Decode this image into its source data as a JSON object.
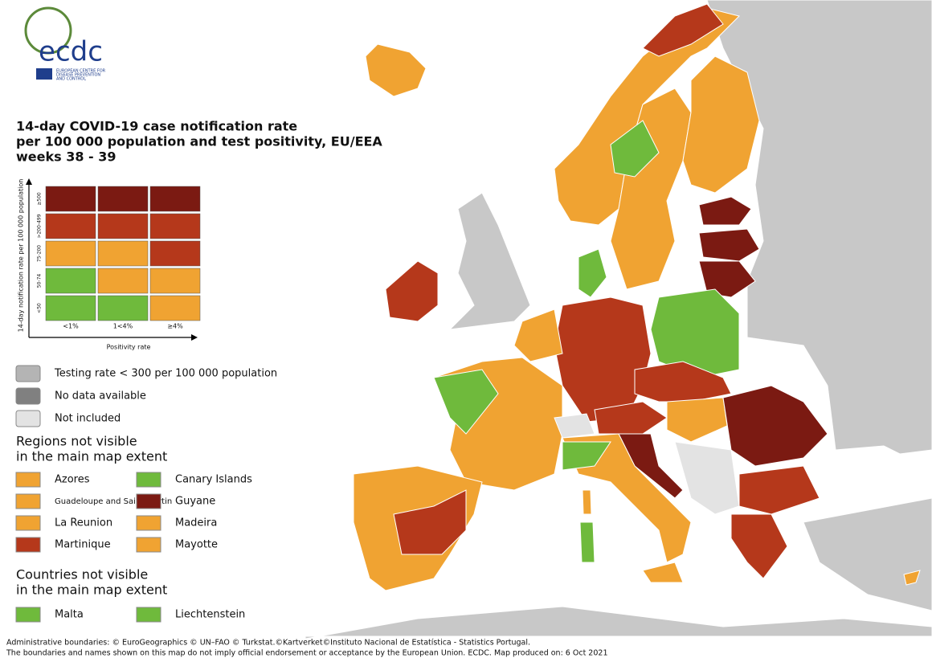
{
  "logo": {
    "name": "ecdc",
    "subtitle": [
      "EUROPEAN CENTRE FOR",
      "DISEASE PREVENTION",
      "AND CONTROL"
    ]
  },
  "title": [
    "14-day COVID-19 case notification rate",
    "per 100 000 population and test positivity, EU/EEA",
    "weeks 38 - 39"
  ],
  "matrix": {
    "y_label": "14-day notification rate per 100 000 population",
    "x_label": "Positivity rate",
    "rows": [
      "≥500",
      ">200-499",
      "75-200",
      "50-74",
      "<50"
    ],
    "columns": [
      "<1%",
      "1<4%",
      "≥4%"
    ],
    "colors": [
      [
        "#7b1a12",
        "#7b1a12",
        "#7b1a12"
      ],
      [
        "#b5381b",
        "#b5381b",
        "#b5381b"
      ],
      [
        "#f0a332",
        "#f0a332",
        "#b5381b"
      ],
      [
        "#6fba3c",
        "#f0a332",
        "#f0a332"
      ],
      [
        "#6fba3c",
        "#6fba3c",
        "#f0a332"
      ]
    ]
  },
  "legend": [
    {
      "label": "Testing rate < 300 per 100 000 population",
      "color": "#b4b4b4"
    },
    {
      "label": "No data available",
      "color": "#808080"
    },
    {
      "label": "Not included",
      "color": "#e3e3e3"
    }
  ],
  "regions": {
    "title": [
      "Regions not visible",
      "in the main map extent"
    ],
    "items": [
      {
        "label": "Azores",
        "color": "#f0a332"
      },
      {
        "label": "Guadeloupe and Saint Martin",
        "color": "#f0a332"
      },
      {
        "label": "La Reunion",
        "color": "#f0a332"
      },
      {
        "label": "Martinique",
        "color": "#b5381b"
      },
      {
        "label": "Canary Islands",
        "color": "#6fba3c"
      },
      {
        "label": "Guyane",
        "color": "#7b1a12"
      },
      {
        "label": "Madeira",
        "color": "#f0a332"
      },
      {
        "label": "Mayotte",
        "color": "#f0a332"
      }
    ]
  },
  "countries": {
    "title": [
      "Countries not visible",
      "in the main map extent"
    ],
    "items": [
      {
        "label": "Malta",
        "color": "#6fba3c"
      },
      {
        "label": "Liechtenstein",
        "color": "#6fba3c"
      }
    ]
  },
  "footer": [
    "Administrative boundaries: © EuroGeographics © UN–FAO © Turkstat.©Kartverket©Instituto Nacional de Estatística - Statistics Portugal.",
    "The boundaries and names shown on this map do not imply official endorsement or acceptance by the European Union. ECDC. Map produced on: 6 Oct 2021"
  ]
}
